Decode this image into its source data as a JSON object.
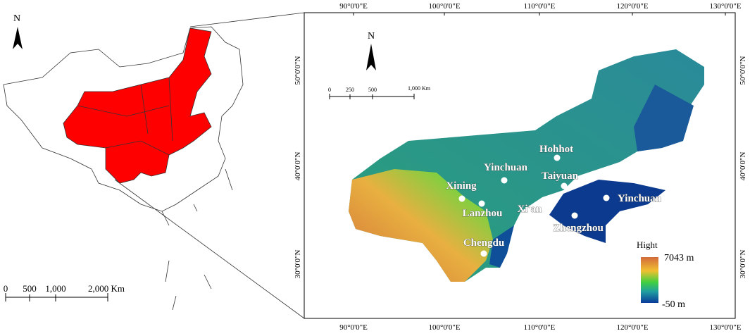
{
  "overview": {
    "north": "N",
    "scale_labels": [
      "0",
      "500",
      "1,000",
      "2,000 Km"
    ]
  },
  "main_map": {
    "north": "N",
    "scale_labels": [
      "0",
      "250",
      "500",
      "1,000 Km"
    ],
    "longitude_labels": [
      "90°0'0\"E",
      "100°0'0\"E",
      "110°0'0\"E",
      "120°0'0\"E",
      "130°0'0\"E"
    ],
    "latitude_labels": [
      "50°0'0\"N",
      "40°0'0\"N",
      "30°0'0\"N"
    ],
    "cities": [
      "Hohhot",
      "Yinchuan",
      "Taiyuan",
      "Xining",
      "Lanzhou",
      "Xi'an",
      "Zhengzhou",
      "Yinchuan",
      "Chengdu"
    ],
    "legend": {
      "title": "Hight",
      "max": "7043 m",
      "min": "-50 m"
    }
  }
}
